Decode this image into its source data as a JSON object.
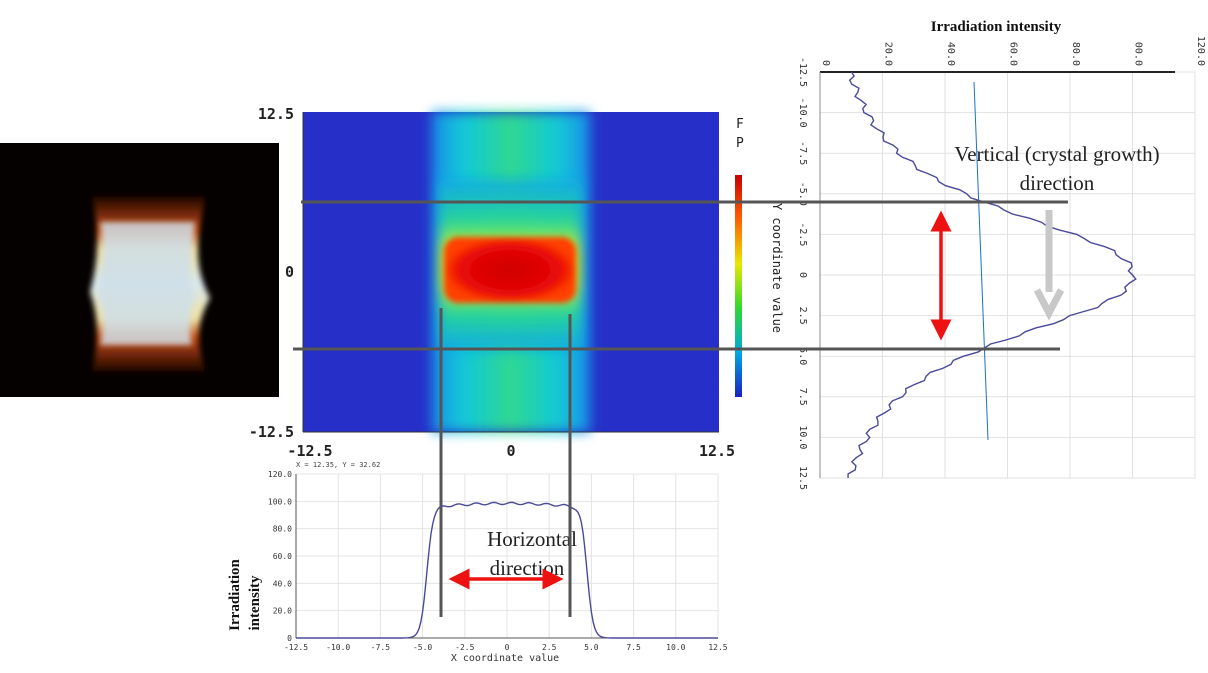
{
  "heatmap": {
    "y_ticks": [
      "12.5",
      "0",
      "-12.5"
    ],
    "x_ticks": [
      "-12.5",
      "0",
      "12.5"
    ],
    "colorbar_title_partial": [
      "F",
      "P"
    ],
    "colorbar_label": "Y coordinate value"
  },
  "vertical_profile": {
    "title": "Irradiation intensity",
    "intensity_ticks": [
      "0",
      "20.0",
      "40.0",
      "60.0",
      "80.0",
      "00.0",
      "120.0"
    ],
    "y_ticks": [
      "-12.5",
      "-10.0",
      "-7.5",
      "-5.0",
      "-2.5",
      "0",
      "2.5",
      "5.0",
      "7.5",
      "10.0",
      "12.5"
    ],
    "annotation_line1": "Vertical (crystal growth)",
    "annotation_line2": "direction"
  },
  "horizontal_profile": {
    "readout": "X = 12.35, Y = 32.62",
    "y_ticks": [
      "120.0",
      "100.0",
      "80.0",
      "60.0",
      "40.0",
      "20.0",
      "0"
    ],
    "x_ticks": [
      "-12.5",
      "-10.0",
      "-7.5",
      "-5.0",
      "-2.5",
      "0",
      "2.5",
      "5.0",
      "7.5",
      "10.0",
      "12.5"
    ],
    "xlabel": "X coordinate value",
    "ylabel_line1": "Irradiation",
    "ylabel_line2": "intensity",
    "annotation_line1": "Horizontal",
    "annotation_line2": "direction"
  },
  "colors": {
    "profile_line": "#4a4a9a",
    "double_arrow": "#ee1111",
    "gray_arrow": "#c8c8c8",
    "guide_line": "#555555",
    "heatmap_background": "#2630c8"
  }
}
